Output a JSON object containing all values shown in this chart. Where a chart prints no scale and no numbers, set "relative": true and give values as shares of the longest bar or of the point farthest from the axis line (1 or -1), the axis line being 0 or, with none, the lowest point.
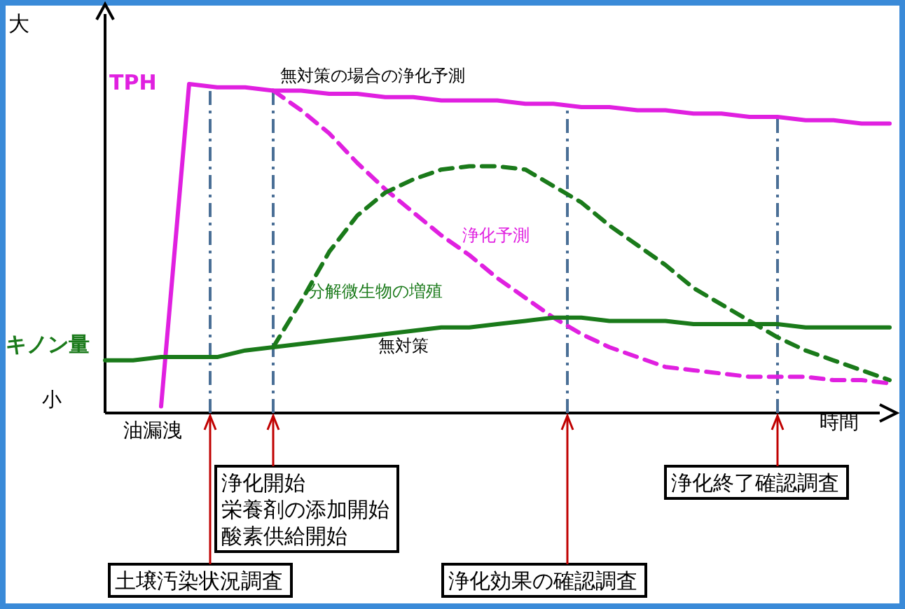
{
  "chart_data": {
    "type": "line",
    "relative": true,
    "legend": false,
    "xlabel": "時間",
    "categories": [
      null,
      null,
      null,
      null,
      null,
      null,
      null,
      null,
      null,
      null,
      null,
      null,
      null,
      null,
      null,
      null,
      null,
      null,
      null,
      null,
      null,
      null,
      null,
      null,
      null,
      null,
      null,
      null,
      null
    ],
    "series": [
      {
        "name": "TPH",
        "color": "#e020e0",
        "line_style": "solid",
        "values": [
          null,
          null,
          0.02,
          1.0,
          0.99,
          0.99,
          0.98,
          0.98,
          0.97,
          0.97,
          0.96,
          0.96,
          0.95,
          0.95,
          0.95,
          0.94,
          0.94,
          0.93,
          0.93,
          0.92,
          0.92,
          0.91,
          0.91,
          0.9,
          0.9,
          0.89,
          0.89,
          0.88,
          0.88
        ]
      },
      {
        "name": "浄化予測",
        "color": "#e020e0",
        "line_style": "dashed",
        "values": [
          null,
          null,
          null,
          null,
          null,
          null,
          0.98,
          0.92,
          0.85,
          0.76,
          0.68,
          0.61,
          0.54,
          0.48,
          0.41,
          0.35,
          0.29,
          0.24,
          0.2,
          0.17,
          0.14,
          0.13,
          0.12,
          0.11,
          0.11,
          0.11,
          0.1,
          0.1,
          0.09
        ]
      },
      {
        "name": "キノン量",
        "color": "#1a7a1a",
        "line_style": "solid",
        "values": [
          0.16,
          0.16,
          0.17,
          0.17,
          0.17,
          0.19,
          0.2,
          0.21,
          0.22,
          0.23,
          0.24,
          0.25,
          0.26,
          0.26,
          0.27,
          0.28,
          0.29,
          0.29,
          0.28,
          0.28,
          0.28,
          0.27,
          0.27,
          0.27,
          0.27,
          0.26,
          0.26,
          0.26,
          0.26
        ]
      },
      {
        "name": "分解微生物の増殖",
        "color": "#1a7a1a",
        "line_style": "dashed",
        "values": [
          null,
          null,
          null,
          null,
          null,
          null,
          0.2,
          0.34,
          0.49,
          0.6,
          0.67,
          0.71,
          0.74,
          0.75,
          0.75,
          0.74,
          0.69,
          0.64,
          0.57,
          0.51,
          0.45,
          0.38,
          0.33,
          0.28,
          0.23,
          0.19,
          0.16,
          0.13,
          0.1
        ]
      }
    ],
    "annotations": [
      "大",
      "小",
      "油漏洩",
      "無対策の場合の浄化予測",
      "無対策",
      "土壌汚染状況調査",
      "浄化開始",
      "栄養剤の添加開始",
      "酸素供給開始",
      "浄化効果の確認調査",
      "浄化終了確認調査"
    ]
  }
}
